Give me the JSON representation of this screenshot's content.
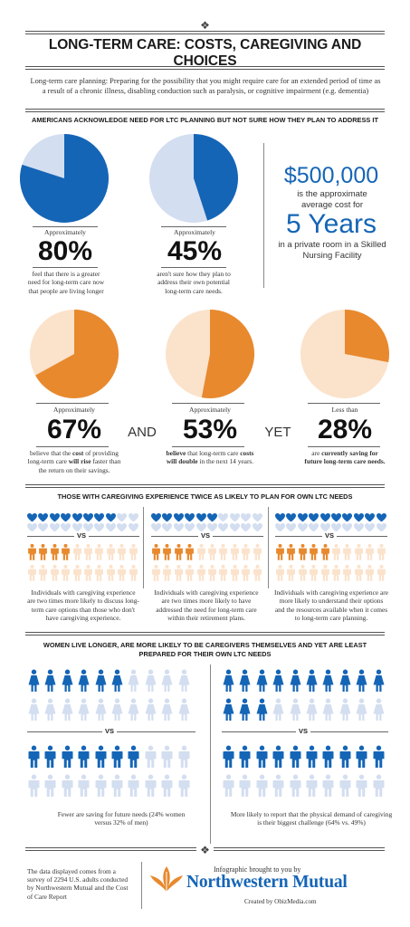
{
  "header": {
    "title": "LONG-TERM CARE: COSTS, CAREGIVING AND CHOICES",
    "intro": "Long-term care planning: Preparing for the possibility that you might require care for an extended period of time as a result of a chronic illness, disabling conduction such as paralysis, or cognitive impairment (e.g. dementia)"
  },
  "section1": {
    "heading": "AMERICANS ACKNOWLEDGE NEED FOR LTC PLANNING BUT NOT SURE HOW THEY PLAN TO ADDRESS IT",
    "stats": [
      {
        "label": "Approximately",
        "value": "80%",
        "fraction": 0.8,
        "caption": "feel that there is a greater need for long-term care now that people are living longer"
      },
      {
        "label": "Approximately",
        "value": "45%",
        "fraction": 0.45,
        "caption": "aren't sure how they plan to address their own potential long-term care needs."
      }
    ],
    "cost": {
      "amount": "$500,000",
      "line1": "is the approximate average cost for",
      "years": "5 Years",
      "line2": "in a private room in a Skilled Nursing Facility"
    },
    "colors": {
      "blue": "#1565b6",
      "light_blue": "#d3def0"
    }
  },
  "section2": {
    "stats": [
      {
        "label": "Approximately",
        "value": "67%",
        "fraction": 0.67,
        "caption_pre": "believe that the ",
        "caption_b1": "cost",
        "caption_mid": " of providing long-term care ",
        "caption_b2": "will rise",
        "caption_post": " faster than the return on their savings."
      },
      {
        "label": "Approximately",
        "value": "53%",
        "fraction": 0.53,
        "caption_b1": "believe",
        "caption_mid": " that long-term care ",
        "caption_b2": "costs will double",
        "caption_post": " in the next 14 years."
      },
      {
        "label": "Less than",
        "value": "28%",
        "fraction": 0.28,
        "caption_pre": "are ",
        "caption_b1": "currently saving for future long-term care needs."
      }
    ],
    "conj1": "AND",
    "conj2": "YET",
    "colors": {
      "orange": "#e8892e",
      "light_orange": "#fbe2cb"
    }
  },
  "section3": {
    "heading": "THOSE WITH CAREGIVING EXPERIENCE TWICE AS LIKELY TO PLAN FOR OWN LTC NEEDS",
    "vs": "VS",
    "panels": [
      {
        "hearts_filled": 8,
        "people_filled": 4,
        "caption": "Individuals with caregiving experience are two times more likely to discuss long-term care options than those who don't have caregiving experience."
      },
      {
        "hearts_filled": 6,
        "people_filled": 4,
        "caption": "Individuals with caregiving experience are two times more likely to have addressed the need for long-term care within their retirement plans."
      },
      {
        "hearts_filled": 10,
        "people_filled": 5,
        "caption": "Individuals with caregiving experience are more likely to understand their options and the resources available when it comes to long-term care planning."
      }
    ]
  },
  "section4": {
    "heading": "WOMEN LIVE LONGER, ARE MORE LIKELY TO BE CAREGIVERS THEMSELVES AND YET ARE LEAST PREPARED FOR THEIR OWN LTC NEEDS",
    "vs": "VS",
    "women_saving_pct": 24,
    "men_saving_pct": 32,
    "women_demand_pct": 64,
    "men_demand_pct": 49,
    "left_caption": "Fewer are saving for future needs (24% women versus 32% of men)",
    "right_caption": "More likely to report that the physical demand of caregiving is their biggest challenge (64% vs. 49%)"
  },
  "footer": {
    "source": "The data displayed comes from a survey of 2294 U.S. adults conducted by Northwestern Mutual and the Cost of Care Report",
    "brought": "Infographic brought to you by",
    "brand": "Northwestern Mutual",
    "created": "Created by ObizMedia.com"
  }
}
